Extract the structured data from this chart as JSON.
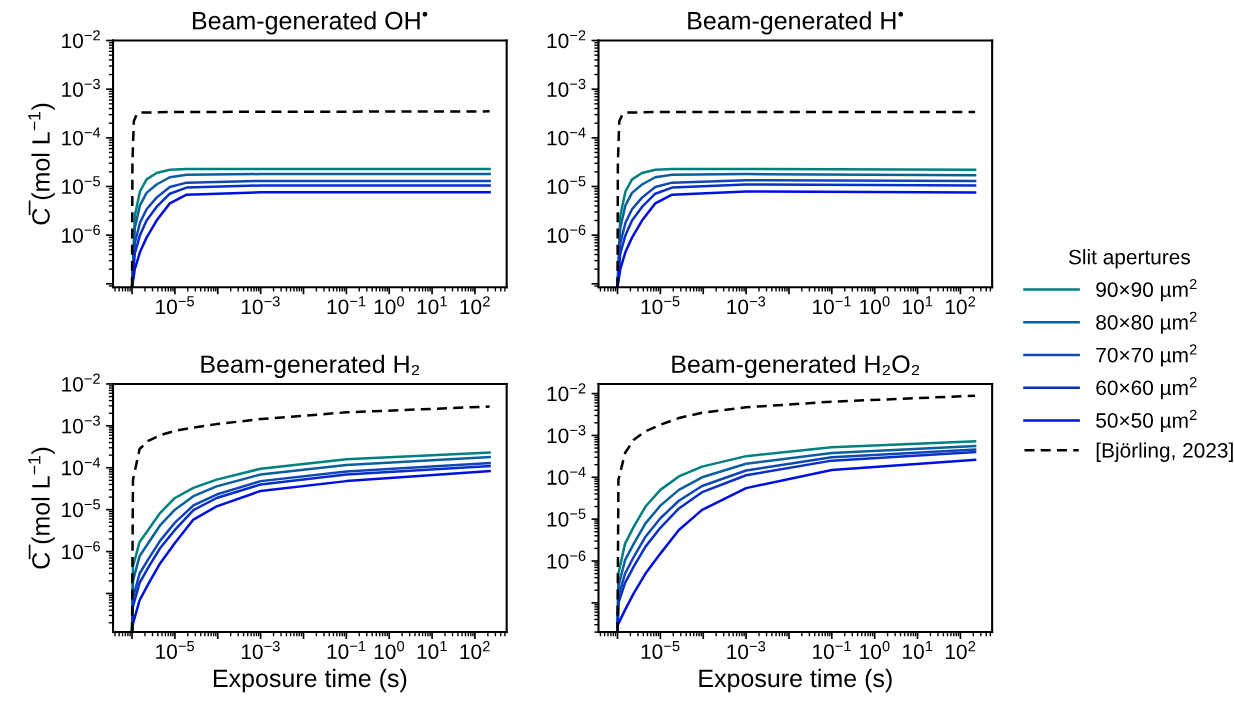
{
  "chart_data": [
    {
      "type": "line",
      "title": "Beam-generated OH$^{•}$",
      "ylabel": "C̅ (mol L$^{−1}$)",
      "log": "xy",
      "legend": "right",
      "legend_title": "Slit apertures",
      "xlim": [
        3.6e-07,
        550
      ],
      "ylim": [
        8.5e-08,
        0.01
      ],
      "xticks": [
        {
          "value": 1e-06,
          "label": null
        },
        {
          "value": 1e-05,
          "label": "10$^{−5}$"
        },
        {
          "value": 0.0001,
          "label": null
        },
        {
          "value": 0.001,
          "label": "10$^{−3}$"
        },
        {
          "value": 0.01,
          "label": null
        },
        {
          "value": 0.1,
          "label": "10$^{−1}$"
        },
        {
          "value": 1,
          "label": "10$^{0}$"
        },
        {
          "value": 10,
          "label": "10$^{1}$"
        },
        {
          "value": 100,
          "label": "10$^{2}$"
        }
      ],
      "yticks": [
        {
          "value": 1e-07,
          "label": null
        },
        {
          "value": 1e-06,
          "label": "10$^{−6}$"
        },
        {
          "value": 1e-05,
          "label": "10$^{−5}$"
        },
        {
          "value": 0.0001,
          "label": "10$^{−4}$"
        },
        {
          "value": 0.001,
          "label": "10$^{−3}$"
        },
        {
          "value": 0.01,
          "label": "10$^{−2}$"
        }
      ],
      "x": [
        1e-06,
        1.16e-06,
        1.53e-06,
        2.18e-06,
        3.73e-06,
        7.6e-06,
        1.87e-05,
        0.001,
        220
      ],
      "series": [
        {
          "name": "90×90 µm$^{2}$",
          "color": "#00807f",
          "values": [
            8.5e-08,
            2.5e-06,
            7.9e-06,
            1.4e-05,
            1.9e-05,
            2.2e-05,
            2.3e-05,
            2.3e-05,
            2.3e-05
          ]
        },
        {
          "name": "80×80 µm$^{2}$",
          "color": "#0a5f9e",
          "values": [
            8.5e-08,
            1.4e-06,
            4.1e-06,
            7.4e-06,
            1.1e-05,
            1.55e-05,
            1.75e-05,
            1.8e-05,
            1.8e-05
          ]
        },
        {
          "name": "70×70 µm$^{2}$",
          "color": "#1047b3",
          "values": [
            8.5e-08,
            6.8e-07,
            1.8e-06,
            3.4e-06,
            5.9e-06,
            9.8e-06,
            1.2e-05,
            1.3e-05,
            1.3e-05
          ]
        },
        {
          "name": "60×60 µm$^{2}$",
          "color": "#0a2fc9",
          "values": [
            8.5e-08,
            4.2e-07,
            1e-06,
            2e-06,
            3.8e-06,
            7.1e-06,
            9.5e-06,
            1.05e-05,
            1.05e-05
          ]
        },
        {
          "name": "50×50 µm$^{2}$",
          "color": "#0010e0",
          "values": [
            8.5e-08,
            2e-07,
            4.5e-07,
            8.9e-07,
            2e-06,
            4.5e-06,
            6.8e-06,
            7.6e-06,
            7.6e-06
          ]
        },
        {
          "name": "[Björling, 2023]",
          "color": "#000000",
          "line_style": "dashed",
          "x": [
            1e-06,
            1.02e-06,
            1.1e-06,
            1.3e-06,
            1.6e-06,
            1e-05,
            220
          ],
          "values": [
            8.5e-08,
            3e-05,
            0.00022,
            0.00031,
            0.00033,
            0.00034,
            0.00035
          ]
        }
      ]
    },
    {
      "type": "line",
      "title": "Beam-generated H$^{•}$",
      "log": "xy",
      "xlim": [
        3.6e-07,
        550
      ],
      "ylim": [
        8.5e-08,
        0.01
      ],
      "xticks": [
        {
          "value": 1e-06,
          "label": null
        },
        {
          "value": 1e-05,
          "label": "10$^{−5}$"
        },
        {
          "value": 0.0001,
          "label": null
        },
        {
          "value": 0.001,
          "label": "10$^{−3}$"
        },
        {
          "value": 0.01,
          "label": null
        },
        {
          "value": 0.1,
          "label": "10$^{−1}$"
        },
        {
          "value": 1,
          "label": "10$^{0}$"
        },
        {
          "value": 10,
          "label": "10$^{1}$"
        },
        {
          "value": 100,
          "label": "10$^{2}$"
        }
      ],
      "yticks": [
        {
          "value": 1e-07,
          "label": null
        },
        {
          "value": 1e-06,
          "label": "10$^{−6}$"
        },
        {
          "value": 1e-05,
          "label": "10$^{−5}$"
        },
        {
          "value": 0.0001,
          "label": "10$^{−4}$"
        },
        {
          "value": 0.001,
          "label": "10$^{−3}$"
        },
        {
          "value": 0.01,
          "label": "10$^{−2}$"
        }
      ],
      "x": [
        1e-06,
        1.16e-06,
        1.53e-06,
        2.18e-06,
        3.73e-06,
        7.6e-06,
        1.87e-05,
        0.001,
        220
      ],
      "series": [
        {
          "color": "#00807f",
          "values": [
            8.5e-08,
            2.5e-06,
            7.9e-06,
            1.4e-05,
            1.9e-05,
            2.2e-05,
            2.3e-05,
            2.3e-05,
            2.2e-05
          ]
        },
        {
          "color": "#0a5f9e",
          "values": [
            8.5e-08,
            1.4e-06,
            4.1e-06,
            7.4e-06,
            1.1e-05,
            1.55e-05,
            1.75e-05,
            1.8e-05,
            1.7e-05
          ]
        },
        {
          "color": "#1047b3",
          "values": [
            8.5e-08,
            6.8e-07,
            1.8e-06,
            3.4e-06,
            5.9e-06,
            9.8e-06,
            1.2e-05,
            1.35e-05,
            1.3e-05
          ]
        },
        {
          "color": "#0a2fc9",
          "values": [
            8.5e-08,
            4.2e-07,
            1e-06,
            2e-06,
            3.8e-06,
            7.1e-06,
            9.5e-06,
            1.1e-05,
            1.05e-05
          ]
        },
        {
          "color": "#0010e0",
          "values": [
            8.5e-08,
            2e-07,
            4.5e-07,
            8.9e-07,
            2e-06,
            4.5e-06,
            6.8e-06,
            7.9e-06,
            7.5e-06
          ]
        },
        {
          "color": "#000000",
          "line_style": "dashed",
          "x": [
            1e-06,
            1.02e-06,
            1.1e-06,
            1.3e-06,
            1.6e-06,
            1e-05,
            220
          ],
          "values": [
            8.5e-08,
            3e-05,
            0.00022,
            0.0003,
            0.00033,
            0.00034,
            0.00034
          ]
        }
      ]
    },
    {
      "type": "line",
      "title": "Beam-generated H₂",
      "ylabel": "C̅ (mol L$^{−1}$)",
      "xlabel": "Exposure time (s)",
      "log": "xy",
      "xlim": [
        3.6e-07,
        550
      ],
      "ylim": [
        1.2e-08,
        0.01
      ],
      "xticks": [
        {
          "value": 1e-06,
          "label": null
        },
        {
          "value": 1e-05,
          "label": "10$^{−5}$"
        },
        {
          "value": 0.0001,
          "label": null
        },
        {
          "value": 0.001,
          "label": "10$^{−3}$"
        },
        {
          "value": 0.01,
          "label": null
        },
        {
          "value": 0.1,
          "label": "10$^{−1}$"
        },
        {
          "value": 1,
          "label": "10$^{0}$"
        },
        {
          "value": 10,
          "label": "10$^{1}$"
        },
        {
          "value": 100,
          "label": "10$^{2}$"
        }
      ],
      "yticks": [
        {
          "value": 1e-07,
          "label": null
        },
        {
          "value": 1e-06,
          "label": "10$^{−6}$"
        },
        {
          "value": 1e-05,
          "label": "10$^{−5}$"
        },
        {
          "value": 0.0001,
          "label": "10$^{−4}$"
        },
        {
          "value": 0.001,
          "label": "10$^{−3}$"
        },
        {
          "value": 0.01,
          "label": "10$^{−2}$"
        }
      ],
      "x": [
        1e-06,
        1.05e-06,
        1.5e-06,
        2.4e-06,
        4.5e-06,
        1e-05,
        2.7e-05,
        9.4e-05,
        0.001,
        0.1,
        220
      ],
      "series": [
        {
          "color": "#00807f",
          "values": [
            1.2e-08,
            4.4e-07,
            1.7e-06,
            3.3e-06,
            8.3e-06,
            1.9e-05,
            3.3e-05,
            5.2e-05,
            9.5e-05,
            0.00016,
            0.00023
          ]
        },
        {
          "color": "#0a5f9e",
          "values": [
            1.2e-08,
            2e-07,
            7.8e-07,
            1.6e-06,
            4.2e-06,
            1e-05,
            2.1e-05,
            3.6e-05,
            6.9e-05,
            0.000117,
            0.00018
          ]
        },
        {
          "color": "#1047b3",
          "values": [
            1.2e-08,
            7.8e-08,
            3e-07,
            6.6e-07,
            1.8e-06,
            4.9e-06,
            1.26e-05,
            2.3e-05,
            4.8e-05,
            8.1e-05,
            0.00013
          ]
        },
        {
          "color": "#0a2fc9",
          "values": [
            1.2e-08,
            4.9e-08,
            1.8e-07,
            4.2e-07,
            1.2e-06,
            3.3e-06,
            9.8e-06,
            1.9e-05,
            4e-05,
            6.9e-05,
            0.00011
          ]
        },
        {
          "color": "#0010e0",
          "values": [
            1.2e-08,
            1.9e-08,
            6.9e-08,
            1.7e-07,
            5.2e-07,
            1.6e-06,
            5.8e-06,
            1.2e-05,
            2.8e-05,
            4.8e-05,
            8.3e-05
          ]
        },
        {
          "color": "#000000",
          "line_style": "dashed",
          "values": [
            1.2e-08,
            5.2e-05,
            0.00028,
            0.00044,
            0.0006,
            0.00076,
            0.00091,
            0.0011,
            0.00145,
            0.0021,
            0.0029
          ]
        }
      ]
    },
    {
      "type": "line",
      "title": "Beam-generated H₂O₂",
      "xlabel": "Exposure time (s)",
      "log": "xy",
      "xlim": [
        3.6e-07,
        550
      ],
      "ylim": [
        2e-08,
        0.017
      ],
      "xticks": [
        {
          "value": 1e-06,
          "label": null
        },
        {
          "value": 1e-05,
          "label": "10$^{−5}$"
        },
        {
          "value": 0.0001,
          "label": null
        },
        {
          "value": 0.001,
          "label": "10$^{−3}$"
        },
        {
          "value": 0.01,
          "label": null
        },
        {
          "value": 0.1,
          "label": "10$^{−1}$"
        },
        {
          "value": 1,
          "label": "10$^{0}$"
        },
        {
          "value": 10,
          "label": "10$^{1}$"
        },
        {
          "value": 100,
          "label": "10$^{2}$"
        }
      ],
      "yticks": [
        {
          "value": 1e-07,
          "label": null
        },
        {
          "value": 1e-06,
          "label": "10$^{−6}$"
        },
        {
          "value": 1e-05,
          "label": "10$^{−5}$"
        },
        {
          "value": 0.0001,
          "label": "10$^{−4}$"
        },
        {
          "value": 0.001,
          "label": "10$^{−3}$"
        },
        {
          "value": 0.01,
          "label": "10$^{−2}$"
        }
      ],
      "x": [
        1e-06,
        1.05e-06,
        1.5e-06,
        2.4e-06,
        4.5e-06,
        1e-05,
        2.7e-05,
        9.4e-05,
        0.001,
        0.1,
        220
      ],
      "series": [
        {
          "color": "#00807f",
          "values": [
            2e-08,
            5e-07,
            2.6e-06,
            6.6e-06,
            2e-05,
            5e-05,
            0.000105,
            0.00018,
            0.00032,
            0.00052,
            0.00072
          ]
        },
        {
          "color": "#0a5f9e",
          "values": [
            2e-08,
            2.5e-07,
            1.05e-06,
            2.6e-06,
            7.9e-06,
            2.1e-05,
            5e-05,
            0.0001,
            0.00021,
            0.00038,
            0.00056
          ]
        },
        {
          "color": "#1047b3",
          "values": [
            2e-08,
            1.45e-07,
            5e-07,
            1.26e-06,
            3.8e-06,
            1.05e-05,
            2.75e-05,
            6.2e-05,
            0.000145,
            0.0003,
            0.00046
          ]
        },
        {
          "color": "#0a2fc9",
          "values": [
            2e-08,
            9.8e-08,
            3e-07,
            7.4e-07,
            2.2e-06,
            6.2e-06,
            1.8e-05,
            4.4e-05,
            0.000112,
            0.00025,
            0.0004
          ]
        },
        {
          "color": "#0010e0",
          "values": [
            null,
            3.2e-08,
            6.8e-08,
            1.7e-07,
            5e-07,
            1.5e-06,
            5.5e-06,
            1.66e-05,
            5.5e-05,
            0.00015,
            0.00026
          ]
        },
        {
          "color": "#000000",
          "line_style": "dashed",
          "values": [
            2e-08,
            8.7e-05,
            0.00038,
            0.00079,
            0.00126,
            0.0018,
            0.0026,
            0.0035,
            0.0047,
            0.0064,
            0.0089
          ]
        }
      ]
    }
  ]
}
